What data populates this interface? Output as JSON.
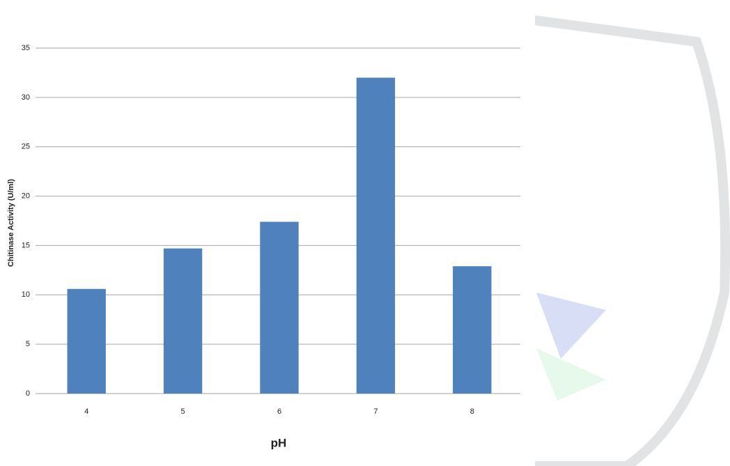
{
  "chart_data": {
    "type": "bar",
    "x_label": "pH",
    "y_label": "Chitinase Activity (U/ml)",
    "categories": [
      "4",
      "5",
      "6",
      "7",
      "8"
    ],
    "values": [
      10.6,
      14.7,
      17.4,
      32,
      12.9
    ],
    "color": "#4f81bd",
    "ylim": [
      0,
      35
    ],
    "yticks": [
      0,
      5,
      10,
      15,
      20,
      25,
      30,
      35
    ],
    "grid": true
  }
}
